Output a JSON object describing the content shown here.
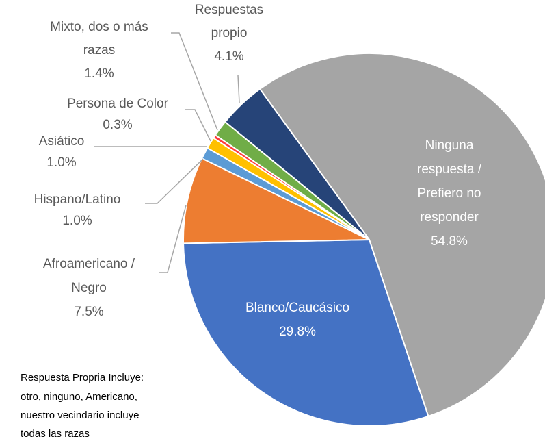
{
  "chart_data": {
    "type": "pie",
    "categories": [
      "Ninguna\nrespuesta /\nPrefiero no\nresponder",
      "Blanco/Caucásico",
      "Afroamericano /\nNegro",
      "Hispano/Latino",
      "Asiático",
      "Persona de Color",
      "Mixto, dos o más\nrazas",
      "Respuestas\npropio"
    ],
    "values": [
      54.8,
      29.8,
      7.5,
      1.0,
      1.0,
      0.3,
      1.4,
      4.1
    ],
    "value_labels": [
      "54.8%",
      "29.8%",
      "7.5%",
      "1.0%",
      "1.0%",
      "0.3%",
      "1.4%",
      "4.1%"
    ],
    "colors": [
      "#a5a5a5",
      "#4472c4",
      "#ed7d31",
      "#5b9bd5",
      "#ffc000",
      "#ff3b3b",
      "#70ad47",
      "#264478"
    ],
    "start_angle": -36,
    "note": [
      "Respuesta Propria Incluye:",
      "otro, ninguno, Americano,",
      "nuestro vecindario incluye",
      "todas las razas"
    ]
  }
}
